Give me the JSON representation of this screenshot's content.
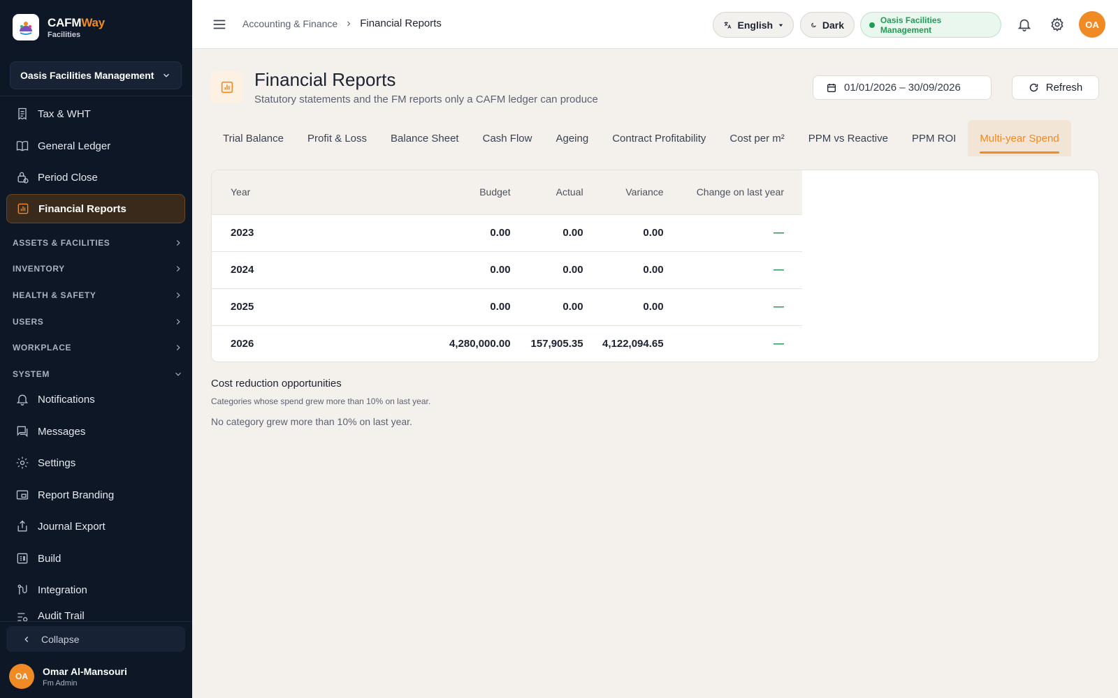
{
  "brand": {
    "name_part1": "CAFM",
    "name_part2": "Way",
    "subtitle": "Facilities"
  },
  "sidebar": {
    "org_select": "Oasis Facilities Management",
    "items_top": [
      {
        "label": "Tax & WHT",
        "icon": "receipt-icon"
      },
      {
        "label": "General Ledger",
        "icon": "book-icon"
      },
      {
        "label": "Period Close",
        "icon": "lock-clock-icon"
      },
      {
        "label": "Financial Reports",
        "icon": "chart-icon",
        "active": true
      }
    ],
    "sections": [
      {
        "label": "ASSETS & FACILITIES",
        "expanded": false
      },
      {
        "label": "INVENTORY",
        "expanded": false
      },
      {
        "label": "HEALTH & SAFETY",
        "expanded": false
      },
      {
        "label": "USERS",
        "expanded": false
      },
      {
        "label": "WORKPLACE",
        "expanded": false
      },
      {
        "label": "SYSTEM",
        "expanded": true
      }
    ],
    "system_items": [
      {
        "label": "Notifications",
        "icon": "bell-icon"
      },
      {
        "label": "Messages",
        "icon": "chat-icon"
      },
      {
        "label": "Settings",
        "icon": "gear-icon"
      },
      {
        "label": "Report Branding",
        "icon": "branding-icon"
      },
      {
        "label": "Journal Export",
        "icon": "export-icon"
      },
      {
        "label": "Build",
        "icon": "build-icon"
      },
      {
        "label": "Integration",
        "icon": "integration-icon"
      },
      {
        "label": "Audit Trail",
        "icon": "audit-icon"
      }
    ],
    "collapse_label": "Collapse",
    "user": {
      "initials": "OA",
      "name": "Omar Al-Mansouri",
      "role": "Fm Admin"
    }
  },
  "topbar": {
    "breadcrumb": [
      "Accounting & Finance",
      "Financial Reports"
    ],
    "language": "English",
    "theme": "Dark",
    "org_status": "Oasis Facilities Management",
    "avatar_initials": "OA"
  },
  "page": {
    "title": "Financial Reports",
    "subtitle": "Statutory statements and the FM reports only a CAFM ledger can produce",
    "date_range": "01/01/2026 – 30/09/2026",
    "refresh_label": "Refresh",
    "tabs": [
      {
        "label": "Trial Balance"
      },
      {
        "label": "Profit & Loss"
      },
      {
        "label": "Balance Sheet"
      },
      {
        "label": "Cash Flow"
      },
      {
        "label": "Ageing"
      },
      {
        "label": "Contract Profitability"
      },
      {
        "label": "Cost per m²"
      },
      {
        "label": "PPM vs Reactive"
      },
      {
        "label": "PPM ROI"
      },
      {
        "label": "Multi-year Spend",
        "active": true
      }
    ]
  },
  "table": {
    "headers": [
      "Year",
      "Budget",
      "Actual",
      "Variance",
      "Change on last year"
    ],
    "rows": [
      {
        "year": "2023",
        "budget": "0.00",
        "actual": "0.00",
        "variance": "0.00",
        "change": "—"
      },
      {
        "year": "2024",
        "budget": "0.00",
        "actual": "0.00",
        "variance": "0.00",
        "change": "—"
      },
      {
        "year": "2025",
        "budget": "0.00",
        "actual": "0.00",
        "variance": "0.00",
        "change": "—"
      },
      {
        "year": "2026",
        "budget": "4,280,000.00",
        "actual": "157,905.35",
        "variance": "4,122,094.65",
        "change": "—"
      }
    ]
  },
  "cost_reduction": {
    "title": "Cost reduction opportunities",
    "subtitle": "Categories whose spend grew more than 10% on last year.",
    "empty": "No category grew more than 10% on last year."
  },
  "colors": {
    "accent": "#f08a24",
    "sidebar_bg": "#0e1726",
    "success": "#1f9d55"
  }
}
